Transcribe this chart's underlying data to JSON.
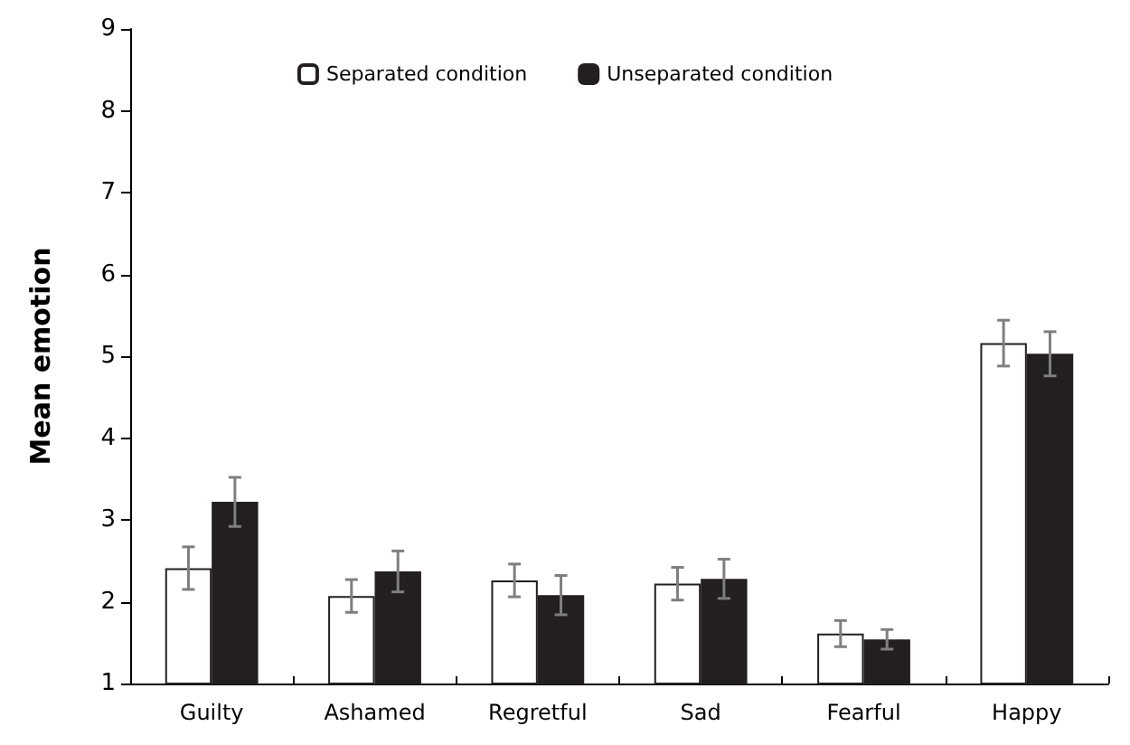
{
  "chart_data": {
    "type": "bar",
    "ylabel": "Mean emotion",
    "categories": [
      "Guilty",
      "Ashamed",
      "Regretful",
      "Sad",
      "Fearful",
      "Happy"
    ],
    "series": [
      {
        "name": "Separated condition",
        "color": "#ffffff",
        "values": [
          2.41,
          2.07,
          2.26,
          2.22,
          1.61,
          5.16
        ],
        "errors": [
          0.26,
          0.2,
          0.2,
          0.2,
          0.16,
          0.28
        ]
      },
      {
        "name": "Unseparated condition",
        "color": "#231f20",
        "values": [
          3.22,
          2.37,
          2.08,
          2.28,
          1.54,
          5.03
        ],
        "errors": [
          0.3,
          0.25,
          0.24,
          0.24,
          0.12,
          0.27
        ]
      }
    ],
    "ylim": [
      1,
      9
    ],
    "yticks": [
      1,
      2,
      3,
      4,
      5,
      6,
      7,
      8,
      9
    ],
    "grid": false,
    "legend": "top"
  }
}
